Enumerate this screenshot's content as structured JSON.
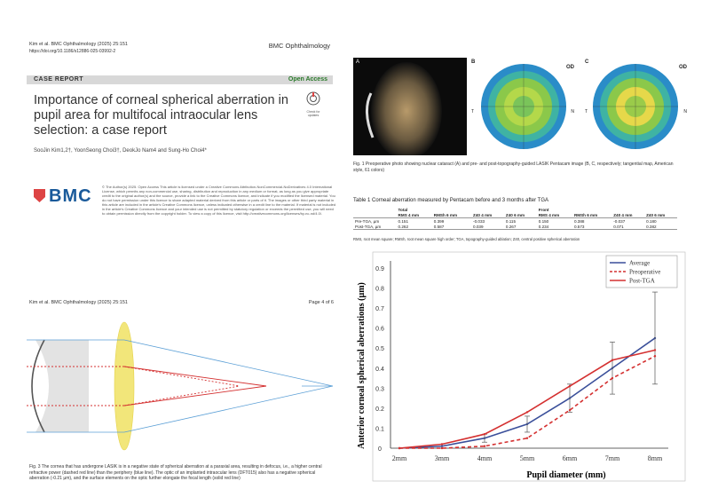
{
  "page1": {
    "journal_header": "Kim et al. BMC Ophthalmology          (2025) 25:151",
    "doi": "https://doi.org/10.1186/s12886-025-03992-2",
    "journal_name": "BMC Ophthalmology",
    "article_type": "CASE REPORT",
    "access": "Open Access",
    "title": "Importance of corneal spherical aberration in pupil area for multifocal intraocular lens selection: a case report",
    "authors": "SooJin Kim1,2†, YoonSeong Choi3†, DeokJo Nam4 and Sung-Ho Choi4*",
    "logo": "BMC",
    "badge": "Check for updates",
    "license_text": "© The Author(s) 2025. Open Access This article is licensed under a Creative Commons Attribution-NonCommercial-NoDerivatives 4.0 International License, which permits any non-commercial use, sharing, distribution and reproduction in any medium or format, as long as you give appropriate credit to the original author(s) and the source, provide a link to the Creative Commons licence, and indicate if you modified the licensed material. You do not have permission under this licence to share adapted material derived from this article or parts of it. The images or other third party material in this article are included in the article's Creative Commons licence, unless indicated otherwise in a credit line to the material. If material is not included in the article's Creative Commons licence and your intended use is not permitted by statutory regulation or exceeds the permitted use, you will need to obtain permission directly from the copyright holder. To view a copy of this licence, visit http://creativecommons.org/licenses/by-nc-nd/4.0/."
  },
  "page4": {
    "header_left": "Kim et al. BMC Ophthalmology          (2025) 25:151",
    "header_right": "Page 4 of 6",
    "fig3_caption": "Fig. 3 The cornea that has undergone LASIK is in a negative state of spherical aberration at a paraxial area, resulting in defocus, i.e., a higher central refractive power (dashed red line) than the periphery (blue line). The optic of an implanted intraocular lens (DFT015) also has a negative spherical aberration (-0.21 µm), and the surface elements on the optic further elongate the focal length (solid red line)"
  },
  "page_right": {
    "fig1_caption": "Fig. 1 Preoperative photo showing nuclear cataract (A) and pre- and post-topography-guided LASIK Pentacam image (B, C, respectively; tangential map, American style, 61 colors)",
    "panel_labels": [
      "A",
      "B",
      "C"
    ],
    "od_label": "OD",
    "t_label": "T",
    "n_label": "N",
    "table1": {
      "title": "Table 1  Corneal aberration measured by Pentacam before and 3 months after TGA",
      "group_headers": [
        "Total",
        "Front"
      ],
      "columns": [
        "",
        "RMS 4 mm",
        "RMSh 6 mm",
        "Z40 4 mm",
        "Z40 6 mm",
        "RMS 4 mm",
        "RMSh 6 mm",
        "Z40 4 mm",
        "Z40 6 mm"
      ],
      "rows": [
        [
          "Pre-TGA, µm",
          "0.151",
          "0.399",
          "-0.033",
          "0.115",
          "0.150",
          "0.388",
          "-0.037",
          "0.180"
        ],
        [
          "Post-TGA, µm",
          "0.262",
          "0.587",
          "0.039",
          "0.267",
          "0.234",
          "0.573",
          "0.071",
          "0.382"
        ]
      ],
      "footnote": "RMS, root mean square; RMSh, root mean square high order; TGA, topography-guided ablation; Z40, central positive spherical aberration"
    }
  },
  "chart_data": {
    "type": "line",
    "categories": [
      "2mm",
      "3mm",
      "4mm",
      "5mm",
      "6mm",
      "7mm",
      "8mm"
    ],
    "xlabel": "Pupil diameter (mm)",
    "ylabel": "Anterior corneal spherical aberrations (µm)",
    "ylim": [
      0,
      0.9
    ],
    "yticks": [
      "0",
      "0.1",
      "0.2",
      "0.3",
      "0.4",
      "0.5",
      "0.6",
      "0.7",
      "0.8",
      "0.9"
    ],
    "legend_position": "top-right",
    "grid": false,
    "series": [
      {
        "name": "Average",
        "values": [
          0,
          0.01,
          0.05,
          0.12,
          0.25,
          0.4,
          0.55
        ],
        "color": "#3a4f9a",
        "dash": false,
        "errors": [
          0,
          0,
          0.02,
          0.04,
          0.07,
          0.13,
          0.23
        ]
      },
      {
        "name": "Preoperative",
        "values": [
          0,
          0,
          0.01,
          0.05,
          0.19,
          0.35,
          0.46
        ],
        "color": "#d43030",
        "dash": true
      },
      {
        "name": "Post-TGA",
        "values": [
          0,
          0.02,
          0.07,
          0.18,
          0.31,
          0.44,
          0.49
        ],
        "color": "#d43030",
        "dash": false
      }
    ]
  }
}
